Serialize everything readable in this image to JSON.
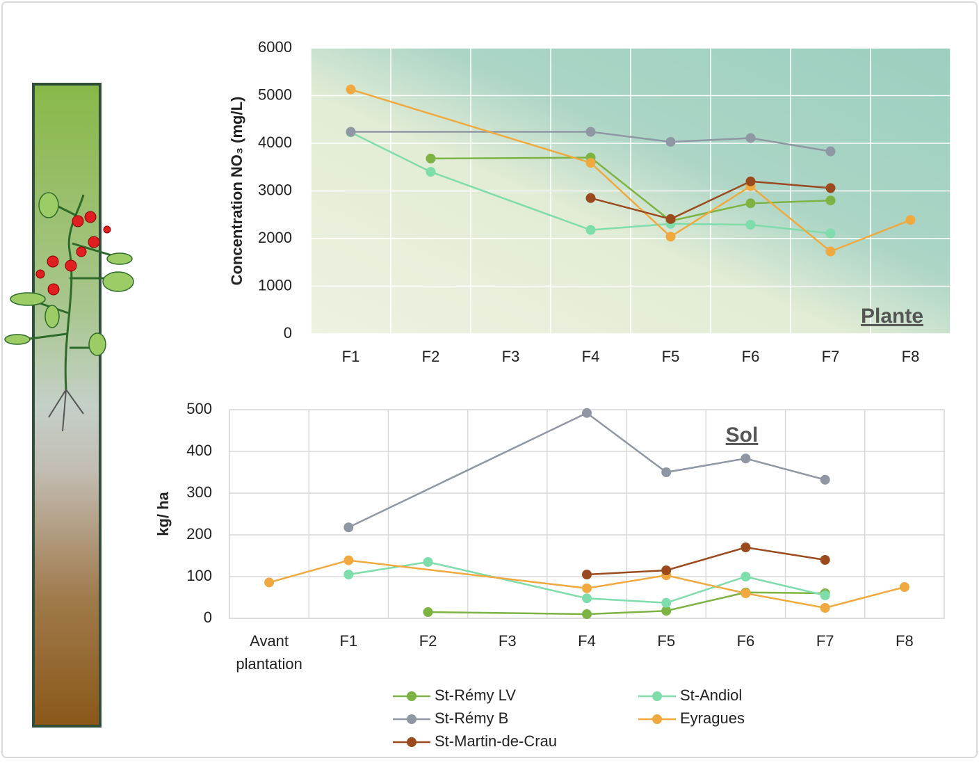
{
  "chart_data": [
    {
      "type": "line",
      "annotation": "Plante",
      "y_label": "Concentration NO₃  (mg/L)",
      "categories": [
        "F1",
        "F2",
        "F3",
        "F4",
        "F5",
        "F6",
        "F7",
        "F8"
      ],
      "ylim": [
        0,
        6000
      ],
      "yticks": [
        0,
        1000,
        2000,
        3000,
        4000,
        5000,
        6000
      ],
      "grid": true,
      "gaps_connected": true,
      "series": [
        {
          "name": "St-Rémy LV",
          "color": "#7cb342",
          "values": [
            null,
            3680,
            null,
            3700,
            2370,
            2740,
            2800,
            null
          ]
        },
        {
          "name": "St-Andiol",
          "color": "#7fdcab",
          "values": [
            4230,
            3400,
            null,
            2180,
            2310,
            2290,
            2110,
            null
          ]
        },
        {
          "name": "St-Rémy B",
          "color": "#8f97a4",
          "values": [
            4240,
            null,
            null,
            4240,
            4030,
            4110,
            3830,
            null
          ]
        },
        {
          "name": "Eyragues",
          "color": "#f0a93e",
          "values": [
            5130,
            null,
            null,
            3590,
            2040,
            3100,
            1730,
            2390
          ]
        },
        {
          "name": "St-Martin-de-Crau",
          "color": "#9a4a1c",
          "values": [
            null,
            null,
            null,
            2850,
            2410,
            3200,
            3060,
            null
          ]
        }
      ]
    },
    {
      "type": "line",
      "annotation": "Sol",
      "y_label": "kg/ ha",
      "categories": [
        "Avant plantation",
        "F1",
        "F2",
        "F3",
        "F4",
        "F5",
        "F6",
        "F7",
        "F8"
      ],
      "ylim": [
        0,
        500
      ],
      "yticks": [
        0,
        100,
        200,
        300,
        400,
        500
      ],
      "grid": true,
      "gaps_connected": true,
      "series": [
        {
          "color": "#7cb342",
          "values": [
            null,
            null,
            15,
            null,
            10,
            18,
            62,
            60,
            null
          ]
        },
        {
          "color": "#7fdcab",
          "values": [
            null,
            105,
            135,
            null,
            48,
            37,
            100,
            55,
            null
          ]
        },
        {
          "color": "#8f97a4",
          "values": [
            null,
            218,
            null,
            null,
            492,
            350,
            383,
            332,
            null
          ]
        },
        {
          "color": "#f0a93e",
          "values": [
            86,
            139,
            null,
            null,
            72,
            103,
            60,
            25,
            75
          ]
        },
        {
          "color": "#9a4a1c",
          "values": [
            null,
            null,
            null,
            null,
            105,
            115,
            170,
            140,
            null
          ]
        }
      ]
    }
  ]
}
